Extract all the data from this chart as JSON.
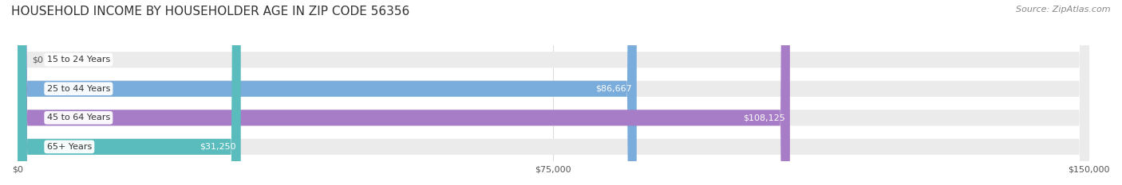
{
  "title": "HOUSEHOLD INCOME BY HOUSEHOLDER AGE IN ZIP CODE 56356",
  "source": "Source: ZipAtlas.com",
  "categories": [
    "15 to 24 Years",
    "25 to 44 Years",
    "45 to 64 Years",
    "65+ Years"
  ],
  "values": [
    0,
    86667,
    108125,
    31250
  ],
  "value_labels": [
    "$0",
    "$86,667",
    "$108,125",
    "$31,250"
  ],
  "bar_colors": [
    "#f4a0a0",
    "#7aacdc",
    "#a87dc8",
    "#5bbcbd"
  ],
  "bar_background": "#ebebeb",
  "xlim": [
    0,
    150000
  ],
  "xticks": [
    0,
    75000,
    150000
  ],
  "xtick_labels": [
    "$0",
    "$75,000",
    "$150,000"
  ],
  "label_bg": "#ffffff",
  "label_text_color": "#333333",
  "title_fontsize": 11,
  "source_fontsize": 8,
  "bar_height": 0.55,
  "figsize": [
    14.06,
    2.33
  ],
  "dpi": 100,
  "background_color": "#ffffff",
  "value_label_inside_color": "#ffffff",
  "value_label_outside_color": "#555555"
}
